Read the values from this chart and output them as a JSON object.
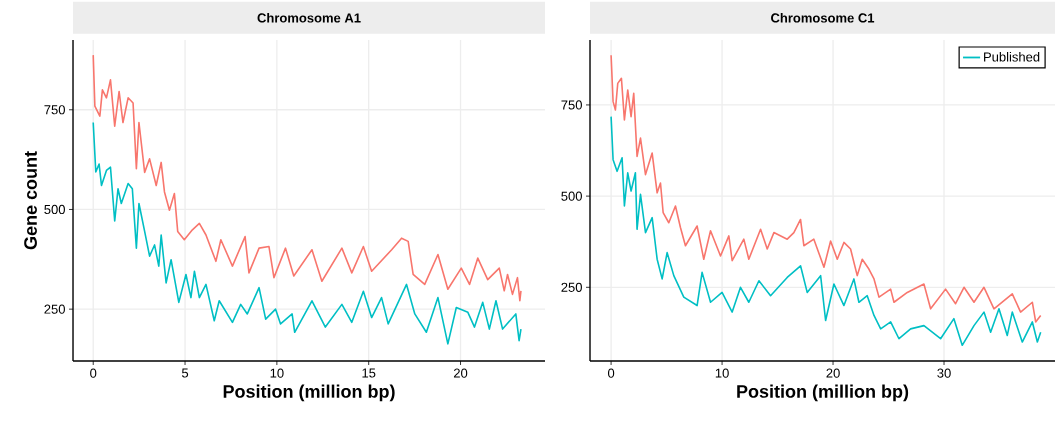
{
  "chart_data": [
    {
      "type": "line",
      "title": "Chromosome A1",
      "xlabel": "Position (million bp)",
      "ylabel": "Gene count",
      "xlim": [
        -1.1,
        24.6
      ],
      "ylim": [
        120,
        925
      ],
      "xticks": [
        0,
        5,
        10,
        15,
        20
      ],
      "yticks": [
        250,
        500,
        750
      ],
      "grid": true,
      "legend": false,
      "series": [
        {
          "color": "#f8766d",
          "x": [
            0,
            0.09,
            0.36,
            0.5,
            0.72,
            0.94,
            1.17,
            1.41,
            1.62,
            1.9,
            2.17,
            2.35,
            2.49,
            2.8,
            3.07,
            3.43,
            3.7,
            3.88,
            4.15,
            4.42,
            4.6,
            4.96,
            5.4,
            5.78,
            6.14,
            6.68,
            6.95,
            7.58,
            8.27,
            8.48,
            9.03,
            9.57,
            9.84,
            10.47,
            10.92,
            11.91,
            12.45,
            13.54,
            14.08,
            14.71,
            15.16,
            16.25,
            16.79,
            17.15,
            17.42,
            18.05,
            18.77,
            19.31,
            20.04,
            20.49,
            20.94,
            21.48,
            22.11,
            22.38,
            22.56,
            22.83,
            23.1,
            23.23,
            23.29
          ],
          "values": [
            887,
            759,
            734,
            800,
            780,
            825,
            709,
            796,
            718,
            780,
            767,
            602,
            718,
            593,
            627,
            560,
            618,
            544,
            498,
            540,
            445,
            424,
            449,
            465,
            436,
            370,
            424,
            358,
            432,
            341,
            403,
            407,
            329,
            403,
            333,
            399,
            320,
            403,
            341,
            407,
            345,
            399,
            428,
            420,
            337,
            312,
            387,
            300,
            353,
            312,
            378,
            324,
            353,
            296,
            337,
            287,
            329,
            271,
            296
          ]
        },
        {
          "color": "#00bfc4",
          "x": [
            0,
            0.14,
            0.32,
            0.45,
            0.72,
            0.94,
            1.17,
            1.35,
            1.53,
            1.9,
            2.13,
            2.35,
            2.49,
            2.8,
            3.07,
            3.34,
            3.57,
            3.7,
            3.97,
            4.24,
            4.66,
            5.05,
            5.32,
            5.51,
            5.78,
            6.14,
            6.59,
            6.86,
            7.58,
            8.03,
            8.39,
            9.03,
            9.39,
            9.93,
            10.2,
            10.83,
            10.97,
            11.91,
            12.64,
            13.54,
            14.08,
            14.71,
            15.16,
            15.7,
            16.06,
            17.06,
            17.51,
            18.14,
            18.77,
            19.31,
            19.77,
            20.4,
            20.76,
            21.21,
            21.57,
            21.93,
            22.29,
            23.01,
            23.19,
            23.29
          ],
          "values": [
            718,
            594,
            614,
            560,
            598,
            606,
            471,
            552,
            515,
            565,
            552,
            403,
            515,
            445,
            383,
            411,
            358,
            436,
            316,
            374,
            267,
            337,
            279,
            345,
            279,
            312,
            221,
            271,
            217,
            262,
            238,
            304,
            225,
            250,
            213,
            238,
            192,
            271,
            205,
            262,
            217,
            295,
            229,
            279,
            213,
            312,
            238,
            192,
            279,
            163,
            254,
            242,
            205,
            267,
            200,
            271,
            200,
            238,
            171,
            200
          ]
        }
      ]
    },
    {
      "type": "line",
      "title": "Chromosome C1",
      "xlabel": "Position (million bp)",
      "xlim": [
        -1.9,
        40
      ],
      "ylim": [
        48,
        928
      ],
      "xticks": [
        0,
        10,
        20,
        30
      ],
      "yticks": [
        250,
        500,
        750
      ],
      "grid": true,
      "legend": "top right",
      "series": [
        {
          "color": "#f8766d",
          "x": [
            0,
            0.18,
            0.39,
            0.6,
            0.93,
            1.2,
            1.5,
            1.8,
            2.04,
            2.34,
            2.65,
            3.1,
            3.7,
            4.15,
            4.45,
            4.69,
            5.2,
            5.8,
            6.25,
            6.7,
            7.75,
            8.35,
            8.96,
            9.86,
            10.61,
            10.91,
            11.96,
            12.41,
            13.47,
            14.07,
            14.67,
            15.87,
            16.47,
            17.07,
            17.37,
            18.27,
            19.18,
            19.78,
            20.38,
            20.98,
            21.58,
            22.18,
            22.63,
            23.23,
            23.69,
            24.14,
            25.19,
            25.49,
            26.69,
            28.19,
            28.79,
            30.14,
            31.04,
            31.8,
            32.7,
            33.6,
            34.5,
            36.15,
            36.9,
            37.96,
            38.26,
            38.71
          ],
          "values": [
            886,
            759,
            736,
            809,
            823,
            709,
            791,
            718,
            782,
            609,
            659,
            559,
            618,
            509,
            536,
            455,
            427,
            473,
            414,
            364,
            418,
            327,
            405,
            336,
            391,
            323,
            382,
            327,
            409,
            355,
            400,
            382,
            400,
            436,
            364,
            382,
            305,
            377,
            327,
            373,
            355,
            282,
            327,
            300,
            273,
            223,
            245,
            209,
            236,
            259,
            191,
            245,
            205,
            250,
            209,
            250,
            191,
            232,
            182,
            209,
            155,
            173
          ]
        },
        {
          "name": "Published",
          "color": "#00bfc4",
          "x": [
            0,
            0.18,
            0.54,
            0.99,
            1.2,
            1.5,
            1.8,
            2.19,
            2.34,
            2.65,
            3.1,
            3.7,
            4.15,
            4.6,
            5.05,
            5.65,
            6.55,
            7.75,
            8.2,
            8.96,
            10,
            10.91,
            11.66,
            12.41,
            13.32,
            14.37,
            15.87,
            17.07,
            17.67,
            18.88,
            19.33,
            20.08,
            20.98,
            21.88,
            22.33,
            23.08,
            23.69,
            24.29,
            25.19,
            25.94,
            26.99,
            28.19,
            29.69,
            30.89,
            31.64,
            32.7,
            33.6,
            34.2,
            34.95,
            35.7,
            36.15,
            37.05,
            37.96,
            38.41,
            38.71
          ],
          "values": [
            718,
            600,
            568,
            605,
            473,
            564,
            514,
            564,
            409,
            505,
            400,
            441,
            327,
            273,
            345,
            282,
            223,
            200,
            291,
            209,
            236,
            182,
            250,
            209,
            268,
            227,
            277,
            309,
            236,
            282,
            159,
            259,
            200,
            273,
            209,
            227,
            173,
            136,
            155,
            109,
            136,
            145,
            109,
            164,
            91,
            145,
            182,
            127,
            191,
            118,
            182,
            100,
            155,
            100,
            127
          ]
        }
      ]
    }
  ]
}
